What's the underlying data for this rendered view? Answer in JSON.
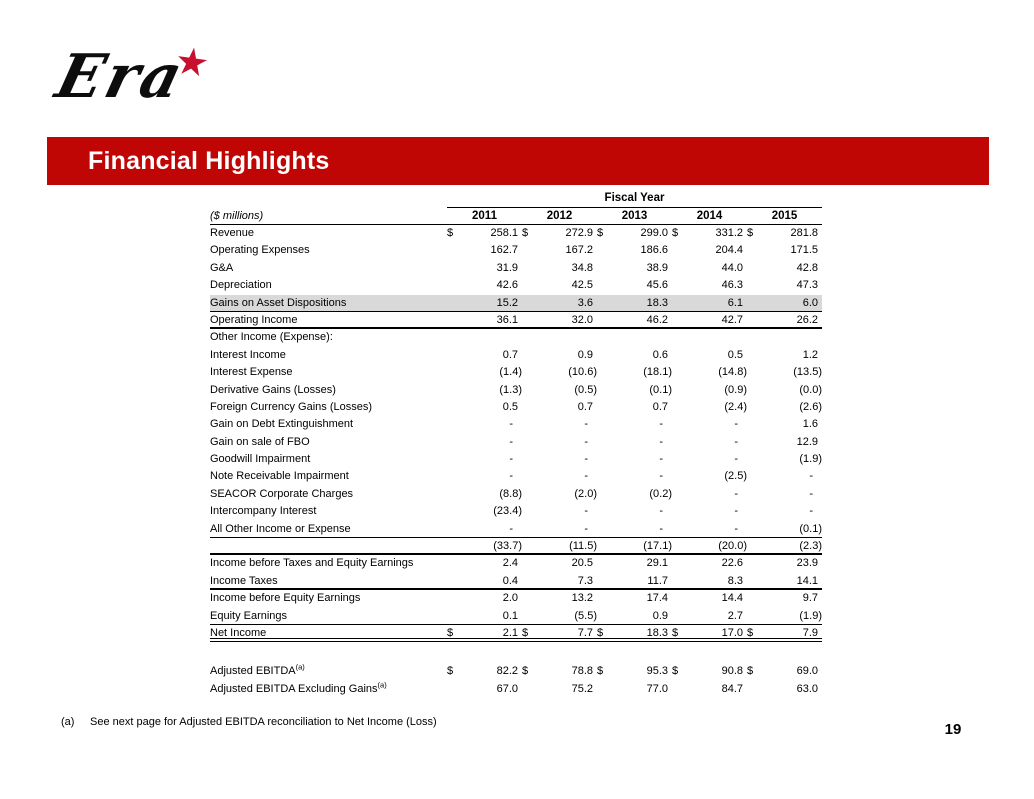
{
  "colors": {
    "banner_red": "#C00505",
    "star_red": "#C8102E",
    "highlight_gray": "#D9D9D9"
  },
  "logo": {
    "text": "Era",
    "star": "★"
  },
  "banner": {
    "title": "Financial Highlights"
  },
  "table": {
    "group_header": "Fiscal Year",
    "unit_label": "($ millions)",
    "years": [
      "2011",
      "2012",
      "2013",
      "2014",
      "2015"
    ],
    "rows": [
      {
        "label": "Revenue",
        "dollar": true,
        "values": [
          "258.1",
          "272.9",
          "299.0",
          "331.2",
          "281.8"
        ]
      },
      {
        "label": "Operating Expenses",
        "values": [
          "162.7",
          "167.2",
          "186.6",
          "204.4",
          "171.5"
        ]
      },
      {
        "label": "G&A",
        "values": [
          "31.9",
          "34.8",
          "38.9",
          "44.0",
          "42.8"
        ]
      },
      {
        "label": "Depreciation",
        "values": [
          "42.6",
          "42.5",
          "45.6",
          "46.3",
          "47.3"
        ]
      },
      {
        "label": "Gains on Asset Dispositions",
        "highlight": true,
        "rule_below": "medium",
        "values": [
          "15.2",
          "3.6",
          "18.3",
          "6.1",
          "6.0"
        ]
      },
      {
        "label": "Operating Income",
        "rule_below": "thick",
        "values": [
          "36.1",
          "32.0",
          "46.2",
          "42.7",
          "26.2"
        ]
      },
      {
        "label": "Other Income (Expense):",
        "values": [
          "",
          "",
          "",
          "",
          ""
        ]
      },
      {
        "label": "Interest Income",
        "values": [
          "0.7",
          "0.9",
          "0.6",
          "0.5",
          "1.2"
        ]
      },
      {
        "label": "Interest Expense",
        "values": [
          "(1.4)",
          "(10.6)",
          "(18.1)",
          "(14.8)",
          "(13.5)"
        ]
      },
      {
        "label": "Derivative Gains (Losses)",
        "values": [
          "(1.3)",
          "(0.5)",
          "(0.1)",
          "(0.9)",
          "(0.0)"
        ]
      },
      {
        "label": "Foreign Currency Gains (Losses)",
        "values": [
          "0.5",
          "0.7",
          "0.7",
          "(2.4)",
          "(2.6)"
        ]
      },
      {
        "label": "Gain on Debt Extinguishment",
        "values": [
          "-",
          "-",
          "-",
          "-",
          "1.6"
        ]
      },
      {
        "label": "Gain on sale of FBO",
        "values": [
          "-",
          "-",
          "-",
          "-",
          "12.9"
        ]
      },
      {
        "label": "Goodwill Impairment",
        "values": [
          "-",
          "-",
          "-",
          "-",
          "(1.9)"
        ]
      },
      {
        "label": "Note Receivable Impairment",
        "values": [
          "-",
          "-",
          "-",
          "(2.5)",
          "-"
        ]
      },
      {
        "label": "SEACOR Corporate Charges",
        "values": [
          "(8.8)",
          "(2.0)",
          "(0.2)",
          "-",
          "-"
        ]
      },
      {
        "label": "Intercompany Interest",
        "values": [
          "(23.4)",
          "-",
          "-",
          "-",
          "-"
        ]
      },
      {
        "label": "All Other Income or Expense",
        "rule_below": "thin",
        "values": [
          "-",
          "-",
          "-",
          "-",
          "(0.1)"
        ]
      },
      {
        "label": "",
        "rule_below": "thick",
        "values": [
          "(33.7)",
          "(11.5)",
          "(17.1)",
          "(20.0)",
          "(2.3)"
        ]
      },
      {
        "label": "Income before Taxes and Equity Earnings",
        "values": [
          "2.4",
          "20.5",
          "29.1",
          "22.6",
          "23.9"
        ]
      },
      {
        "label": "Income Taxes",
        "rule_below": "thick",
        "values": [
          "0.4",
          "7.3",
          "11.7",
          "8.3",
          "14.1"
        ]
      },
      {
        "label": "Income before Equity Earnings",
        "values": [
          "2.0",
          "13.2",
          "17.4",
          "14.4",
          "9.7"
        ]
      },
      {
        "label": "Equity Earnings",
        "rule_below": "medium",
        "values": [
          "0.1",
          "(5.5)",
          "0.9",
          "2.7",
          "(1.9)"
        ]
      },
      {
        "label": "Net Income",
        "dollar": true,
        "rule_below": "double",
        "values": [
          "2.1",
          "7.7",
          "18.3",
          "17.0",
          "7.9"
        ]
      }
    ],
    "ebitda_rows": [
      {
        "label": "Adjusted EBITDA",
        "sup": "(a)",
        "dollar": true,
        "values": [
          "82.2",
          "78.8",
          "95.3",
          "90.8",
          "69.0"
        ]
      },
      {
        "label": "Adjusted EBITDA Excluding Gains",
        "sup": "(a)",
        "values": [
          "67.0",
          "75.2",
          "77.0",
          "84.7",
          "63.0"
        ]
      }
    ]
  },
  "footnote": {
    "marker": "(a)",
    "text": "See next page for Adjusted EBITDA reconciliation to Net Income (Loss)"
  },
  "page_number": "19"
}
